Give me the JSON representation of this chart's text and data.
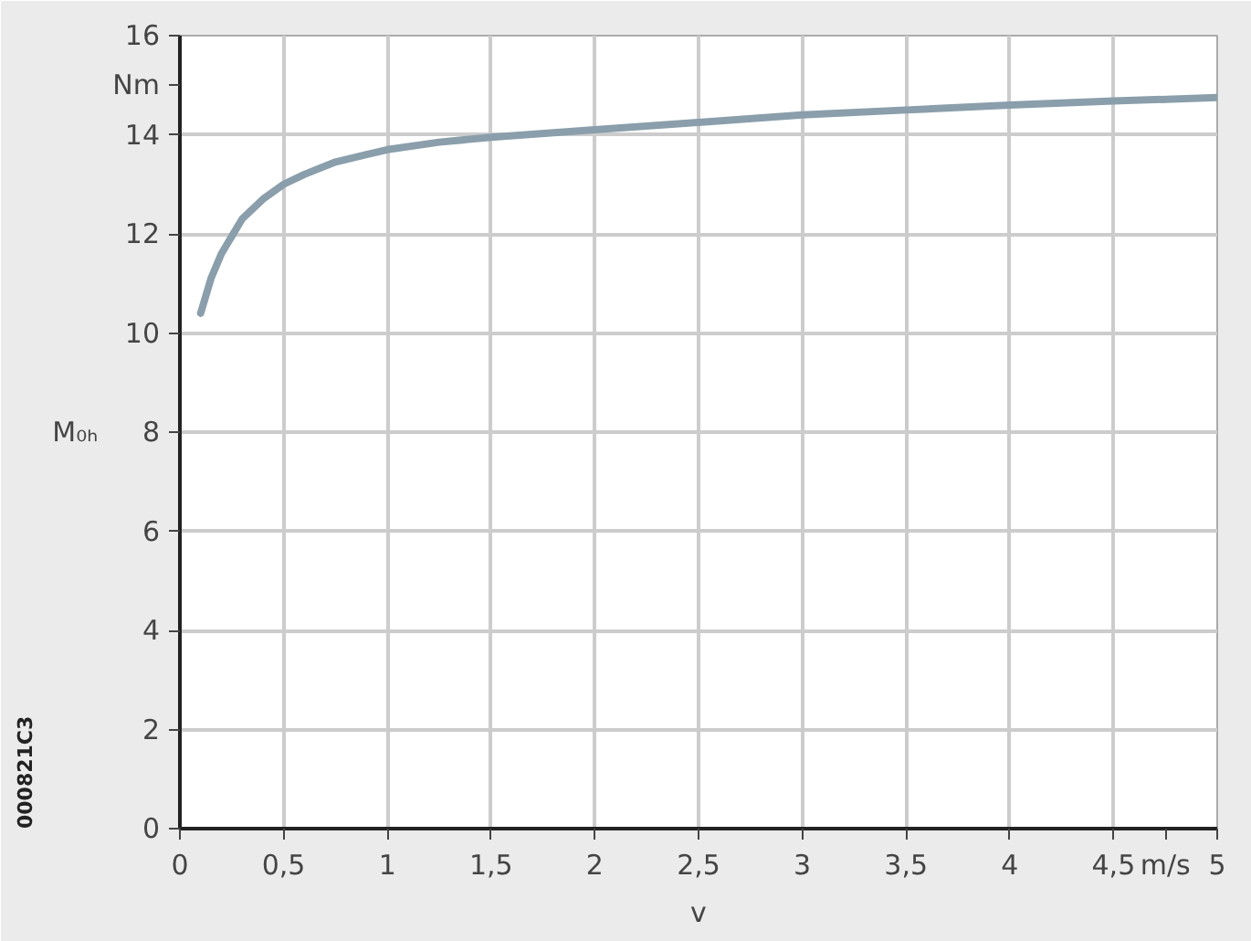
{
  "chart_data": {
    "type": "line",
    "xlabel": "v",
    "ylabel": "M₀ₕ",
    "annotations": [
      "Nm",
      "m/s",
      "000821C3"
    ],
    "series": [
      {
        "color": "#8a9eab",
        "x": [
          0.1,
          0.15,
          0.2,
          0.3,
          0.4,
          0.5,
          0.6,
          0.75,
          0.9,
          1,
          1.25,
          1.5,
          2,
          2.5,
          3,
          3.5,
          4,
          4.5,
          5
        ],
        "values": [
          10.4,
          11.1,
          11.6,
          12.3,
          12.7,
          13.0,
          13.2,
          13.45,
          13.6,
          13.7,
          13.85,
          13.95,
          14.1,
          14.25,
          14.4,
          14.5,
          14.6,
          14.68,
          14.75
        ]
      }
    ],
    "xlim": [
      0,
      5
    ],
    "ylim": [
      0,
      16
    ],
    "xticks": [
      0,
      {
        "value": 0.5,
        "label": "0,5"
      },
      1,
      {
        "value": 1.5,
        "label": "1,5"
      },
      2,
      {
        "value": 2.5,
        "label": "2,5"
      },
      3,
      {
        "value": 3.5,
        "label": "3,5"
      },
      4,
      {
        "value": 4.5,
        "label": "4,5"
      },
      5
    ],
    "yticks": [
      0,
      2,
      4,
      6,
      8,
      10,
      12,
      14,
      16
    ],
    "grid": true,
    "marker": "none",
    "line_style": "solid"
  }
}
